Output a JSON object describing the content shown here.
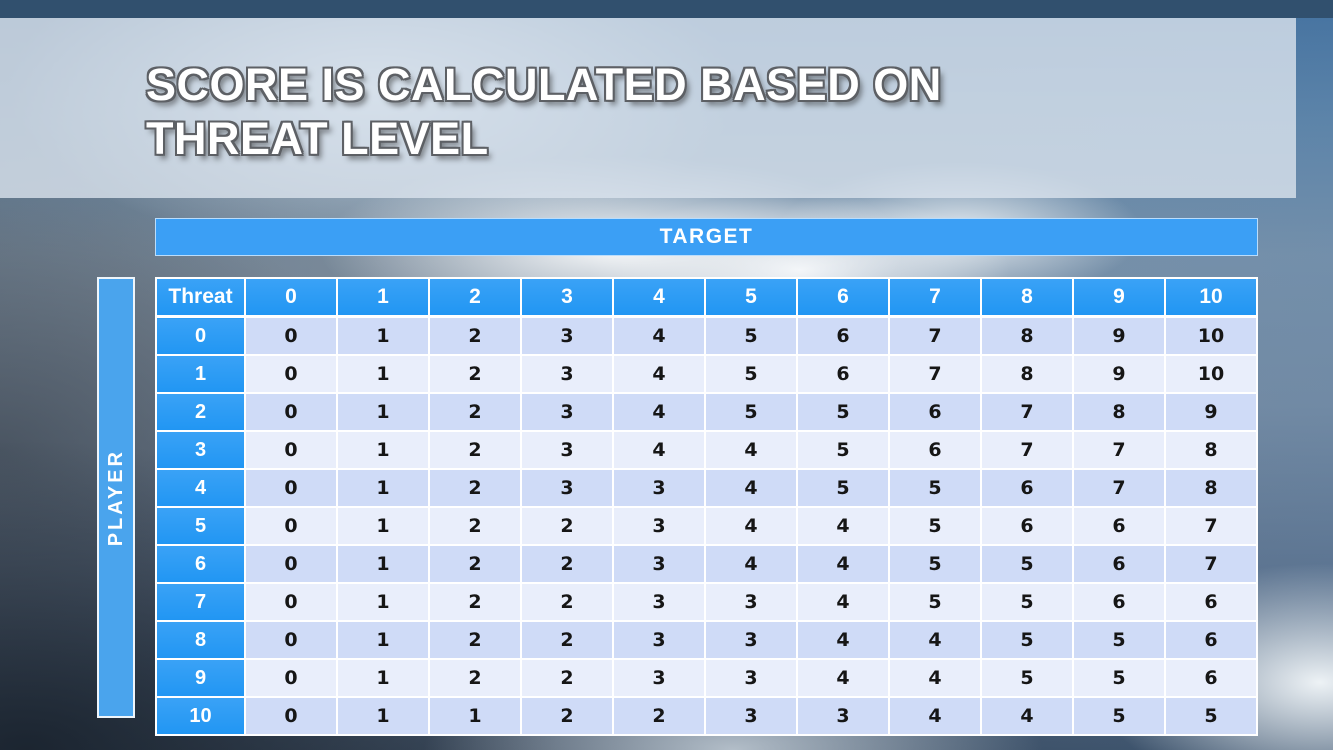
{
  "slide": {
    "title_line1": "SCORE IS CALCULATED BASED ON",
    "title_line2": "THREAT LEVEL"
  },
  "matrix": {
    "target_label": "TARGET",
    "player_label": "PLAYER",
    "corner_label": "Threat",
    "column_headers": [
      "0",
      "1",
      "2",
      "3",
      "4",
      "5",
      "6",
      "7",
      "8",
      "9",
      "10"
    ],
    "row_headers": [
      "0",
      "1",
      "2",
      "3",
      "4",
      "5",
      "6",
      "7",
      "8",
      "9",
      "10"
    ],
    "rows": [
      [
        0,
        1,
        2,
        3,
        4,
        5,
        6,
        7,
        8,
        9,
        10
      ],
      [
        0,
        1,
        2,
        3,
        4,
        5,
        6,
        7,
        8,
        9,
        10
      ],
      [
        0,
        1,
        2,
        3,
        4,
        5,
        5,
        6,
        7,
        8,
        9
      ],
      [
        0,
        1,
        2,
        3,
        4,
        4,
        5,
        6,
        7,
        7,
        8
      ],
      [
        0,
        1,
        2,
        3,
        3,
        4,
        5,
        5,
        6,
        7,
        8
      ],
      [
        0,
        1,
        2,
        2,
        3,
        4,
        4,
        5,
        6,
        6,
        7
      ],
      [
        0,
        1,
        2,
        2,
        3,
        4,
        4,
        5,
        5,
        6,
        7
      ],
      [
        0,
        1,
        2,
        2,
        3,
        3,
        4,
        5,
        5,
        6,
        6
      ],
      [
        0,
        1,
        2,
        2,
        3,
        3,
        4,
        4,
        5,
        5,
        6
      ],
      [
        0,
        1,
        2,
        2,
        3,
        3,
        4,
        4,
        5,
        5,
        6
      ],
      [
        0,
        1,
        1,
        2,
        2,
        3,
        3,
        4,
        4,
        5,
        5
      ]
    ]
  },
  "colors": {
    "top_bar_navy": "#31506e",
    "target_bar_blue": "#3b9ff5",
    "player_bar_blue": "#4aa4ed",
    "header_blue": "#2196f3",
    "row_band_dark": "#cfdbf7",
    "row_band_light": "#e9eefb"
  }
}
